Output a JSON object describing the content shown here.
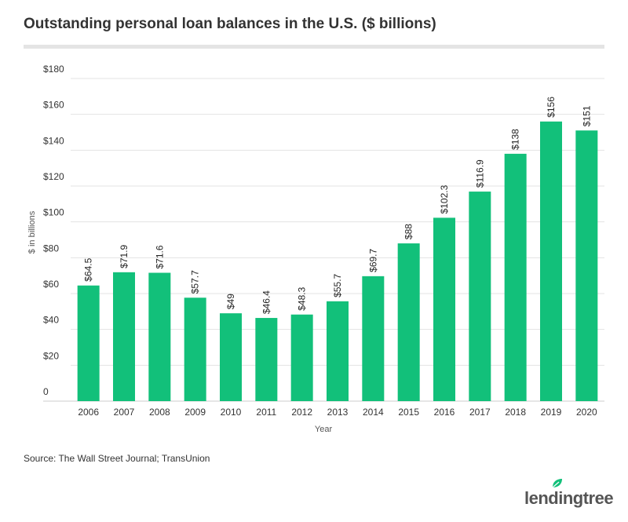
{
  "header": {
    "title": "Outstanding personal loan balances in the U.S. ($ billions)"
  },
  "chart_data": {
    "type": "bar",
    "categories": [
      "2006",
      "2007",
      "2008",
      "2009",
      "2010",
      "2011",
      "2012",
      "2013",
      "2014",
      "2015",
      "2016",
      "2017",
      "2018",
      "2019",
      "2020"
    ],
    "values": [
      64.5,
      71.9,
      71.6,
      57.7,
      49,
      46.4,
      48.3,
      55.7,
      69.7,
      88,
      102.3,
      116.9,
      138,
      156,
      151
    ],
    "data_labels": [
      "$64.5",
      "$71.9",
      "$71.6",
      "$57.7",
      "$49",
      "$46.4",
      "$48.3",
      "$55.7",
      "$69.7",
      "$88",
      "$102.3",
      "$116.9",
      "$138",
      "$156",
      "$151"
    ],
    "ylim": [
      0,
      180
    ],
    "yticks": [
      0,
      20,
      40,
      60,
      80,
      100,
      120,
      140,
      160,
      180
    ],
    "ytick_labels": [
      "0",
      "$20",
      "$40",
      "$60",
      "$80",
      "$100",
      "$120",
      "$140",
      "$160",
      "$180"
    ],
    "xlabel": "Year",
    "ylabel": "$ in billions",
    "grid": true,
    "bar_color": "#12c07a"
  },
  "footer": {
    "source": "Source: The Wall Street Journal; TransUnion",
    "logo_text": "lendingtree"
  }
}
